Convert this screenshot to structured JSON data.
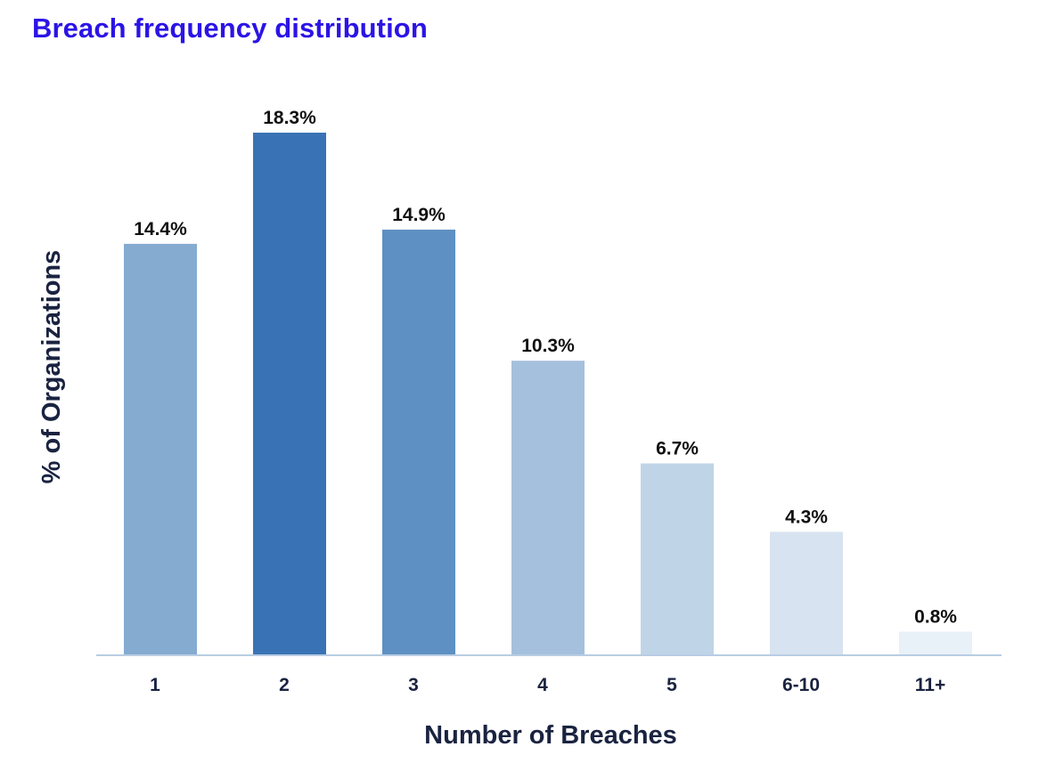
{
  "chart_data": {
    "type": "bar",
    "title": "Breach frequency distribution",
    "xlabel": "Number of Breaches",
    "ylabel": "% of Organizations",
    "categories": [
      "1",
      "2",
      "3",
      "4",
      "5",
      "6-10",
      "11+"
    ],
    "values": [
      14.4,
      18.3,
      14.9,
      10.3,
      6.7,
      4.3,
      0.8
    ],
    "value_labels": [
      "14.4%",
      "18.3%",
      "14.9%",
      "10.3%",
      "6.7%",
      "4.3%",
      "0.8%"
    ],
    "bar_colors": [
      "#85abd1",
      "#3a73b5",
      "#5e90c3",
      "#a4c0dd",
      "#c0d4e8",
      "#d7e3f0",
      "#e8f0f8"
    ],
    "title_color": "#2b14e6",
    "ylim": [
      0,
      18.3
    ],
    "grid": false,
    "legend": "none"
  }
}
